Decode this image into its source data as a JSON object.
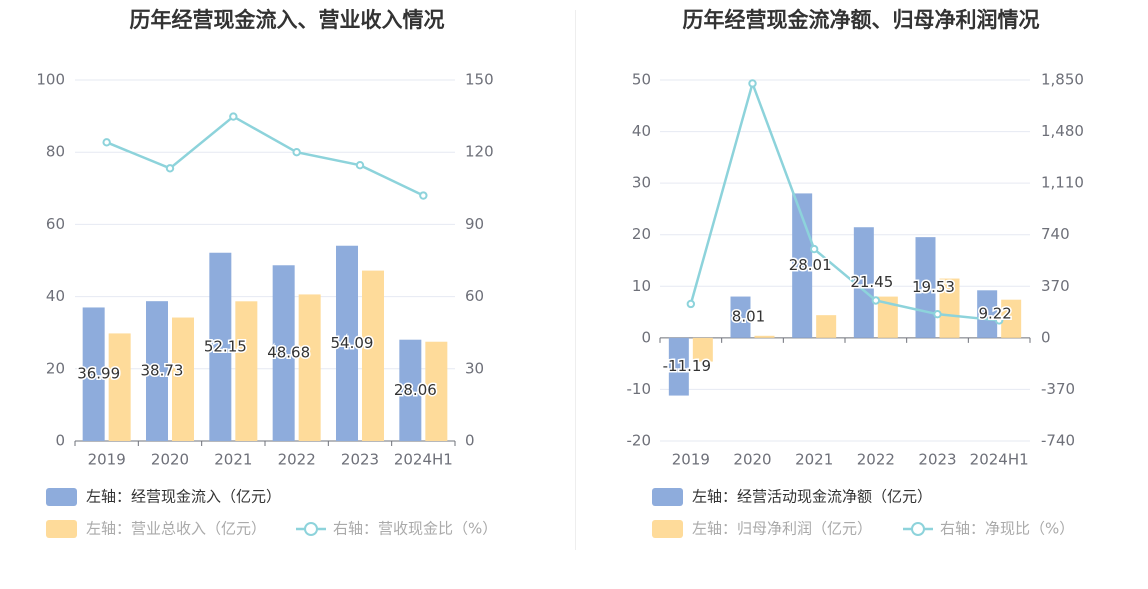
{
  "chart_data": [
    {
      "type": "bar",
      "title": "历年经营现金流入、营业收入情况",
      "categories": [
        "2019",
        "2020",
        "2021",
        "2022",
        "2023",
        "2024H1"
      ],
      "left_axis": {
        "ticks": [
          "0",
          "20",
          "40",
          "60",
          "80",
          "100"
        ],
        "ylim": [
          0,
          100
        ]
      },
      "right_axis": {
        "ticks": [
          "0",
          "30",
          "60",
          "90",
          "120",
          "150"
        ],
        "ylim": [
          0,
          150
        ]
      },
      "series": [
        {
          "name": "左轴：经营现金流入（亿元）",
          "kind": "bar",
          "axis": "left",
          "color": "#8eacdc",
          "values": [
            36.99,
            38.73,
            52.15,
            48.68,
            54.09,
            28.06
          ],
          "labels": [
            "36.99",
            "38.73",
            "52.15",
            "48.68",
            "54.09",
            "28.06"
          ]
        },
        {
          "name": "左轴：营业总收入（亿元）",
          "kind": "bar",
          "axis": "left",
          "color": "#fedb9a",
          "values": [
            29.8,
            34.2,
            38.7,
            40.6,
            47.2,
            27.5
          ]
        },
        {
          "name": "右轴：营收现金比（%）",
          "kind": "line",
          "axis": "right",
          "color": "#8dd3db",
          "values": [
            124.1,
            113.3,
            134.8,
            120.0,
            114.6,
            102.0
          ]
        }
      ]
    },
    {
      "type": "bar",
      "title": "历年经营现金流净额、归母净利润情况",
      "categories": [
        "2019",
        "2020",
        "2021",
        "2022",
        "2023",
        "2024H1"
      ],
      "left_axis": {
        "ticks": [
          "-20",
          "-10",
          "0",
          "10",
          "20",
          "30",
          "40",
          "50"
        ],
        "ylim": [
          -20,
          50
        ]
      },
      "right_axis": {
        "ticks": [
          "-740",
          "-370",
          "0",
          "370",
          "740",
          "1,110",
          "1,480",
          "1,850"
        ],
        "ylim": [
          -740,
          1850
        ]
      },
      "series": [
        {
          "name": "左轴：经营活动现金流净额（亿元）",
          "kind": "bar",
          "axis": "left",
          "color": "#8eacdc",
          "values": [
            -11.19,
            8.01,
            28.01,
            21.45,
            19.53,
            9.22
          ],
          "labels": [
            "-11.19",
            "8.01",
            "28.01",
            "21.45",
            "19.53",
            "9.22"
          ]
        },
        {
          "name": "左轴：归母净利润（亿元）",
          "kind": "bar",
          "axis": "left",
          "color": "#fedb9a",
          "values": [
            -4.6,
            0.4,
            4.4,
            8.0,
            11.5,
            7.4
          ]
        },
        {
          "name": "右轴：净现比（%）",
          "kind": "line",
          "axis": "right",
          "color": "#8dd3db",
          "values": [
            243,
            1825,
            637,
            268,
            170,
            125
          ]
        }
      ]
    }
  ]
}
